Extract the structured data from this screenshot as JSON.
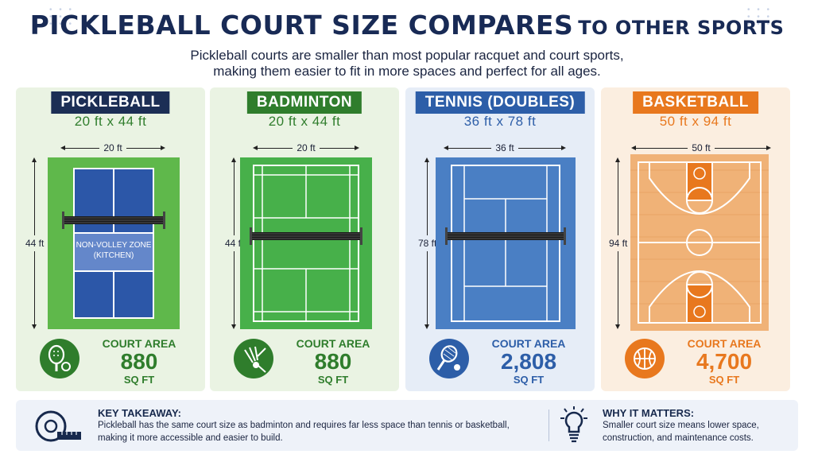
{
  "title": {
    "main": "PICKLEBALL COURT SIZE COMPARES",
    "tail": "TO OTHER SPORTS"
  },
  "subtitle": {
    "line1": "Pickleball courts are smaller than most popular racquet and court sports,",
    "line2": "making them easier to fit in more spaces and perfect for all ages."
  },
  "cards": [
    {
      "name": "PICKLEBALL",
      "dims": "20 ft x 44 ft",
      "width": "20 ft",
      "height": "44 ft",
      "zone_line1": "NON-VOLLEY ZONE",
      "zone_line2": "(KITCHEN)",
      "area_label": "COURT AREA",
      "area_value": "880",
      "area_unit": "SQ FT",
      "icon": "pickleball-paddle-icon",
      "color": "#1c2e55",
      "court_color": "#2c57a8"
    },
    {
      "name": "BADMINTON",
      "dims": "20 ft x 44 ft",
      "width": "20 ft",
      "height": "44 ft",
      "area_label": "COURT AREA",
      "area_value": "880",
      "area_unit": "SQ FT",
      "icon": "shuttlecock-icon",
      "color": "#2f7d2c",
      "court_color": "#47b04a"
    },
    {
      "name": "TENNIS (DOUBLES)",
      "dims": "36 ft x 78 ft",
      "width": "36 ft",
      "height": "78 ft",
      "area_label": "COURT AREA",
      "area_value": "2,808",
      "area_unit": "SQ FT",
      "icon": "tennis-racket-icon",
      "color": "#2d5ea8",
      "court_color": "#4a7fc4"
    },
    {
      "name": "BASKETBALL",
      "dims": "50 ft x 94 ft",
      "width": "50 ft",
      "height": "94 ft",
      "area_label": "COURT AREA",
      "area_value": "4,700",
      "area_unit": "SQ FT",
      "icon": "basketball-icon",
      "color": "#e8781e",
      "court_color": "#f0b277"
    }
  ],
  "takeaway": {
    "title": "KEY TAKEAWAY:",
    "line1": "Pickleball has the same court size as badminton and requires far less space than tennis or basketball,",
    "line2": "making it more accessible and easier to build."
  },
  "why": {
    "title": "WHY IT MATTERS:",
    "line1": "Smaller court size means lower space,",
    "line2": "construction, and maintenance costs."
  }
}
